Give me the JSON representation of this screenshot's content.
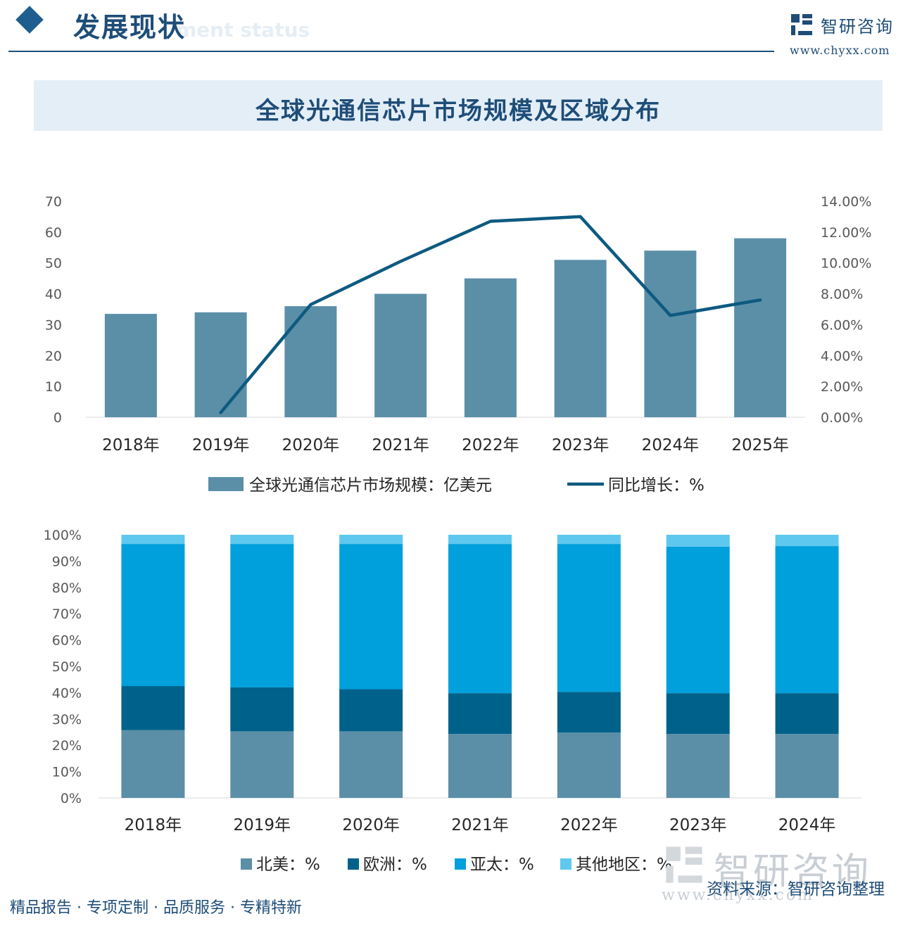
{
  "header": {
    "title": "发展现状",
    "ghost_text": "ment status",
    "logo_name": "智研咨询",
    "logo_url": "www.chyxx.com"
  },
  "footer": {
    "slogan": "精品报告 · 专项定制 · 品质服务 · 专精特新",
    "source": "资料来源：智研咨询整理",
    "watermark_name": "智研咨询",
    "watermark_url": "www.chyxx.com"
  },
  "colors": {
    "brand": "#1e4d78",
    "bar": "#5b8fa8",
    "line": "#0e5a80",
    "north_america": "#5b8fa8",
    "europe": "#00628a",
    "asia_pacific": "#00a0dc",
    "other": "#5fc8ee"
  },
  "chart_data": [
    {
      "type": "bar",
      "title": "全球光通信芯片市场规模及区域分布",
      "categories": [
        "2018年",
        "2019年",
        "2020年",
        "2021年",
        "2022年",
        "2023年",
        "2024年",
        "2025年"
      ],
      "series": [
        {
          "name": "全球光通信芯片市场规模：亿美元",
          "kind": "bar",
          "axis": "left",
          "values": [
            33.5,
            34,
            36,
            40,
            45,
            51,
            54,
            58
          ]
        },
        {
          "name": "同比增长：%",
          "kind": "line",
          "axis": "right",
          "values": [
            null,
            0.3,
            7.3,
            10.1,
            12.7,
            13.0,
            6.6,
            7.6
          ]
        }
      ],
      "y_left": {
        "ylim": [
          0,
          70
        ],
        "ticks": [
          "0",
          "10",
          "20",
          "30",
          "40",
          "50",
          "60",
          "70"
        ]
      },
      "y_right": {
        "ylim": [
          0,
          14
        ],
        "ticks": [
          "0.00%",
          "2.00%",
          "4.00%",
          "6.00%",
          "8.00%",
          "10.00%",
          "12.00%",
          "14.00%"
        ]
      },
      "legend": {
        "position": "bottom",
        "bar_label": "全球光通信芯片市场规模：亿美元",
        "line_label": "同比增长：%"
      }
    },
    {
      "type": "bar",
      "stacked": true,
      "categories": [
        "2018年",
        "2019年",
        "2020年",
        "2021年",
        "2022年",
        "2023年",
        "2024年"
      ],
      "series": [
        {
          "name": "北美：%",
          "values": [
            25.8,
            25.3,
            25.3,
            24.3,
            24.8,
            24.3,
            24.3
          ]
        },
        {
          "name": "欧洲：%",
          "values": [
            16.7,
            16.7,
            16.0,
            15.5,
            15.5,
            15.5,
            15.5
          ]
        },
        {
          "name": "亚太：%",
          "values": [
            54.0,
            54.5,
            55.2,
            56.7,
            56.2,
            55.7,
            55.9
          ]
        },
        {
          "name": "其他地区：%",
          "values": [
            3.5,
            3.5,
            3.5,
            3.5,
            3.5,
            4.5,
            4.3
          ]
        }
      ],
      "ylim": [
        0,
        100
      ],
      "ticks": [
        "0%",
        "10%",
        "20%",
        "30%",
        "40%",
        "50%",
        "60%",
        "70%",
        "80%",
        "90%",
        "100%"
      ],
      "legend": {
        "position": "bottom"
      }
    }
  ]
}
